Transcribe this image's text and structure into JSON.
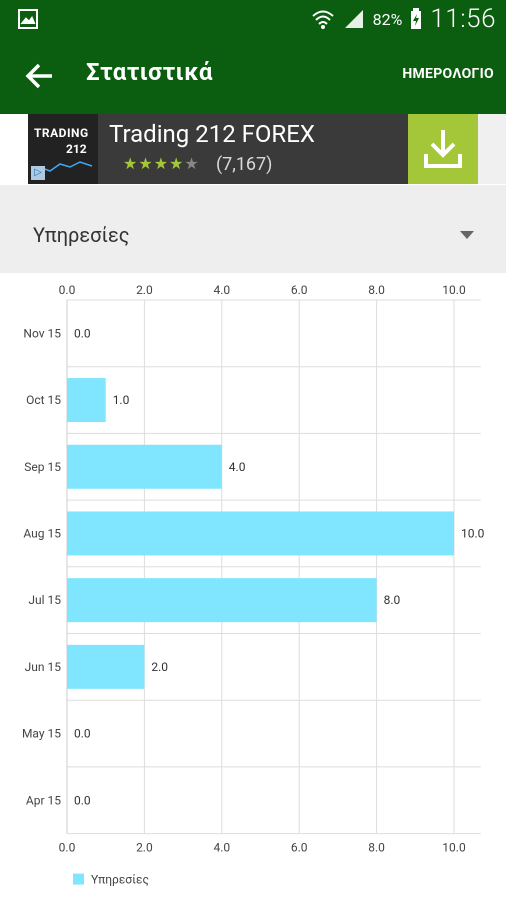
{
  "status_bar": {
    "battery": "82%",
    "time": "11:56"
  },
  "app_bar": {
    "title": "Στατιστικά",
    "action_label": "ΗΜΕΡΟΛΟΓΙΟ"
  },
  "ad": {
    "logo_top": "TRADING",
    "logo_bottom": "212",
    "title": "Trading 212 FOREX",
    "stars": 4,
    "max_stars": 5,
    "rating_count": "(7,167)"
  },
  "filter": {
    "selected": "Υπηρεσίες"
  },
  "chart_data": {
    "type": "bar",
    "orientation": "horizontal",
    "categories": [
      "Nov 15",
      "Oct 15",
      "Sep 15",
      "Aug 15",
      "Jul 15",
      "Jun 15",
      "May 15",
      "Apr 15"
    ],
    "series": [
      {
        "name": "Υπηρεσίες",
        "values": [
          0.0,
          1.0,
          4.0,
          10.0,
          8.0,
          2.0,
          0.0,
          0.0
        ],
        "color": "#80e5ff"
      }
    ],
    "xlim": [
      0,
      11
    ],
    "ticks": [
      "0.0",
      "2.0",
      "4.0",
      "6.0",
      "8.0",
      "10.0"
    ],
    "tick_values": [
      0,
      2,
      4,
      6,
      8,
      10
    ],
    "data_labels": [
      "0.0",
      "1.0",
      "4.0",
      "10.0",
      "8.0",
      "2.0",
      "0.0",
      "0.0"
    ],
    "legend": "bottom-left",
    "grid": true
  },
  "colors": {
    "app_bar": "#0b5d10",
    "bar": "#80e5ff",
    "install_button": "#a4c639",
    "star": "#a4c639"
  }
}
